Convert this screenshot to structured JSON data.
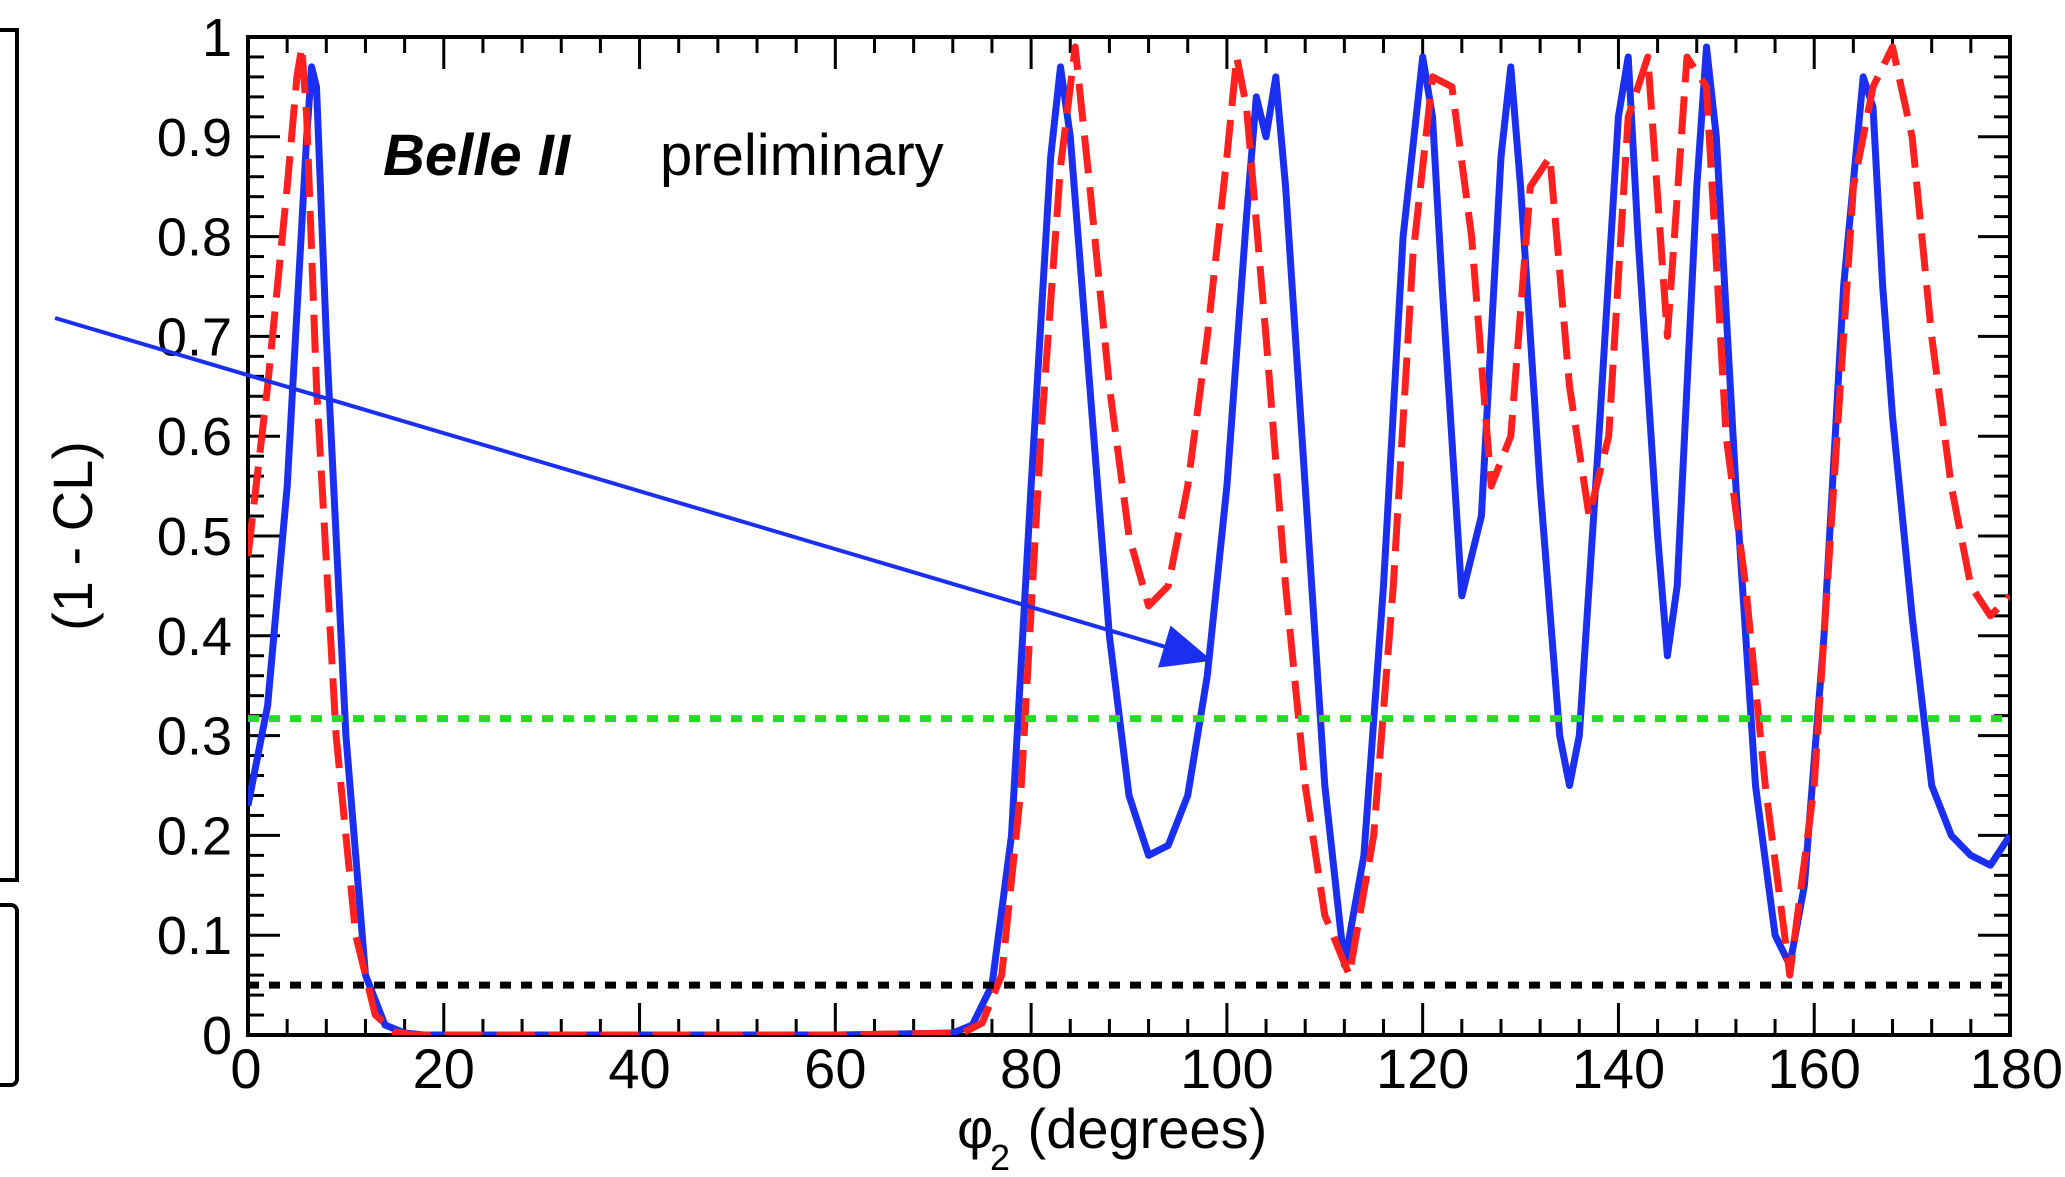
{
  "chart_data": {
    "type": "line",
    "xlabel_main": "φ",
    "xlabel_sub": "2",
    "xlabel_rest": " (degrees)",
    "ylabel": "(1 - CL)",
    "annotation_bold": "Belle II",
    "annotation_rest": "preliminary",
    "xlim": [
      0,
      180
    ],
    "ylim": [
      0,
      1
    ],
    "x_ticks": [
      "0",
      "20",
      "40",
      "60",
      "80",
      "100",
      "120",
      "140",
      "160",
      "180"
    ],
    "y_ticks": [
      "0",
      "0.1",
      "0.2",
      "0.3",
      "0.4",
      "0.5",
      "0.6",
      "0.7",
      "0.8",
      "0.9",
      "1"
    ],
    "grid": false,
    "series": [
      {
        "style": "solid",
        "color": "#1a2ff0",
        "x": [
          0,
          2,
          4,
          6,
          6.5,
          7,
          8,
          10,
          12,
          14,
          16,
          18,
          20,
          40,
          60,
          72,
          74,
          76,
          78,
          80,
          82,
          83,
          84,
          86,
          88,
          90,
          92,
          94,
          96,
          98,
          100,
          102,
          103,
          104,
          105,
          106,
          108,
          110,
          112,
          114,
          116,
          118,
          120,
          121,
          122,
          124,
          126,
          128,
          129,
          130,
          132,
          134,
          135,
          136,
          138,
          140,
          141,
          142,
          144,
          145,
          146,
          148,
          149,
          150,
          152,
          154,
          156,
          157.5,
          159,
          161,
          163,
          165,
          166,
          167,
          168,
          170,
          172,
          174,
          176,
          178,
          180
        ],
        "y": [
          0.23,
          0.33,
          0.55,
          0.9,
          0.97,
          0.95,
          0.7,
          0.3,
          0.06,
          0.01,
          0.002,
          0,
          0,
          0,
          0,
          0.002,
          0.01,
          0.05,
          0.2,
          0.55,
          0.88,
          0.97,
          0.9,
          0.65,
          0.4,
          0.24,
          0.18,
          0.19,
          0.24,
          0.36,
          0.55,
          0.82,
          0.94,
          0.9,
          0.96,
          0.85,
          0.55,
          0.25,
          0.07,
          0.18,
          0.45,
          0.8,
          0.98,
          0.92,
          0.75,
          0.44,
          0.52,
          0.88,
          0.97,
          0.85,
          0.55,
          0.3,
          0.25,
          0.3,
          0.6,
          0.92,
          0.98,
          0.8,
          0.5,
          0.38,
          0.45,
          0.85,
          0.99,
          0.9,
          0.55,
          0.25,
          0.1,
          0.07,
          0.15,
          0.4,
          0.75,
          0.96,
          0.93,
          0.75,
          0.62,
          0.42,
          0.25,
          0.2,
          0.18,
          0.17,
          0.2
        ]
      },
      {
        "style": "dashed",
        "color": "#ff2020",
        "x": [
          0,
          2,
          4,
          5,
          5.5,
          6,
          7,
          9,
          11,
          13,
          15,
          17,
          19,
          40,
          60,
          73,
          75,
          77,
          79,
          81,
          83,
          84.5,
          86,
          88,
          90,
          92,
          94,
          96,
          98,
          100,
          101,
          102,
          104,
          106,
          108,
          110,
          112.5,
          115,
          117,
          119,
          121,
          123,
          125,
          127,
          129,
          131,
          133,
          135,
          137,
          139,
          141,
          143,
          145,
          147,
          149,
          151,
          153,
          155,
          157.5,
          160,
          162,
          164,
          166,
          168,
          170,
          172,
          174,
          176,
          178,
          180
        ],
        "y": [
          0.48,
          0.65,
          0.85,
          0.96,
          0.99,
          0.92,
          0.65,
          0.3,
          0.1,
          0.02,
          0.003,
          0,
          0,
          0,
          0,
          0.002,
          0.012,
          0.06,
          0.25,
          0.6,
          0.87,
          0.99,
          0.85,
          0.65,
          0.5,
          0.43,
          0.45,
          0.55,
          0.7,
          0.88,
          0.98,
          0.93,
          0.7,
          0.45,
          0.25,
          0.12,
          0.06,
          0.2,
          0.45,
          0.78,
          0.96,
          0.95,
          0.8,
          0.55,
          0.6,
          0.85,
          0.88,
          0.65,
          0.52,
          0.6,
          0.92,
          0.98,
          0.7,
          0.98,
          0.95,
          0.6,
          0.45,
          0.25,
          0.06,
          0.25,
          0.55,
          0.85,
          0.95,
          0.99,
          0.9,
          0.7,
          0.55,
          0.45,
          0.42,
          0.44
        ]
      },
      {
        "style": "dotted",
        "color": "#22dd22",
        "x": [
          0,
          180
        ],
        "y": [
          0.317,
          0.317
        ]
      },
      {
        "style": "dotted",
        "color": "#000000",
        "x": [
          0,
          180
        ],
        "y": [
          0.05,
          0.05
        ]
      }
    ],
    "arrow": {
      "color": "#1a2ff0",
      "target_x": 98.5,
      "target_y": 0.375
    }
  }
}
